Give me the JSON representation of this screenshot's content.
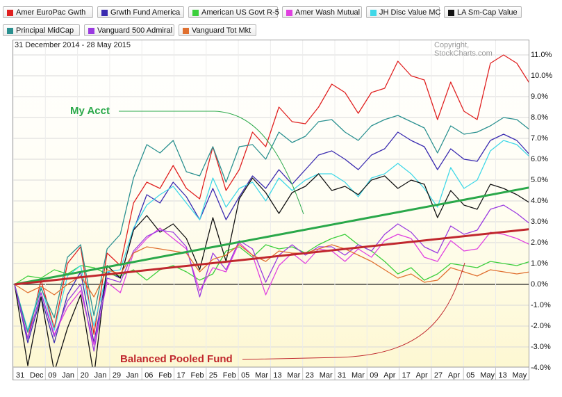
{
  "legend": [
    {
      "label": "Amer EuroPac Gwth",
      "color": "#e02020"
    },
    {
      "label": "Grwth Fund America",
      "color": "#3a2bb0"
    },
    {
      "label": "American US Govt R-5",
      "color": "#3ccf3c"
    },
    {
      "label": "Amer Wash Mutual",
      "color": "#e040e0"
    },
    {
      "label": "JH Disc Value MC",
      "color": "#40d8e8"
    },
    {
      "label": "LA Sm-Cap Value",
      "color": "#111111"
    },
    {
      "label": "Principal MidCap",
      "color": "#2a9090"
    },
    {
      "label": "Vanguard 500 Admiral",
      "color": "#9a3ae0"
    },
    {
      "label": "Vanguard Tot Mkt",
      "color": "#e07030"
    }
  ],
  "header": {
    "date_range": "31 December 2014 - 28 May 2015",
    "copyright": "Copyright, StockCharts.com"
  },
  "annotations": {
    "my_acct": {
      "label": "My Acct",
      "color": "#2aa84a"
    },
    "balanced": {
      "label": "Balanced Pooled Fund",
      "color": "#c0272d"
    }
  },
  "chart_data": {
    "type": "line",
    "ylim": [
      -4.8,
      11.3
    ],
    "y_ticks": [
      "11.0%",
      "10.0%",
      "9.0%",
      "8.0%",
      "7.0%",
      "6.0%",
      "5.0%",
      "4.0%",
      "3.0%",
      "2.0%",
      "1.0%",
      "0.0%",
      "-1.0%",
      "-2.0%",
      "-3.0%",
      "-4.0%"
    ],
    "x_ticks": [
      "31",
      "Dec",
      "09",
      "Jan",
      "20",
      "Jan",
      "29",
      "Jan",
      "06",
      "Feb",
      "17",
      "Feb",
      "25",
      "Feb",
      "05",
      "Mar",
      "13",
      "Mar",
      "23",
      "Mar",
      "31",
      "Mar",
      "09",
      "Apr",
      "17",
      "Apr",
      "27",
      "Apr",
      "05",
      "May",
      "13",
      "May"
    ],
    "series": [
      {
        "name": "Amer EuroPac Gwth",
        "color": "#e02020",
        "values": [
          0,
          -2.6,
          0.2,
          -2.1,
          1,
          1.8,
          -2.4,
          1.5,
          0.9,
          3.9,
          4.9,
          4.6,
          5.7,
          4.6,
          4.1,
          6.6,
          4.5,
          5.5,
          7.3,
          6.6,
          8.5,
          7.8,
          7.7,
          8.5,
          9.6,
          9.2,
          8.2,
          9.2,
          9.4,
          10.7,
          10,
          9.8,
          7.9,
          9.7,
          8.3,
          7.9,
          10.6,
          11,
          10.6,
          9.6
        ]
      },
      {
        "name": "Grwth Fund America",
        "color": "#3a2bb0",
        "values": [
          0,
          -2.8,
          -0.6,
          -2.8,
          -0.5,
          0.6,
          -2.8,
          0.6,
          0.3,
          2.6,
          4.3,
          3.9,
          4.9,
          4.2,
          3.1,
          4.6,
          3.1,
          4.2,
          5.2,
          4.6,
          5.5,
          4.8,
          5.5,
          6.2,
          6.4,
          6,
          5.5,
          6.2,
          6.5,
          7.3,
          6.9,
          6.6,
          5.5,
          6.5,
          6,
          5.9,
          6.9,
          7.2,
          6.9,
          6.2
        ]
      },
      {
        "name": "American US Govt R-5",
        "color": "#3ccf3c",
        "values": [
          0,
          0.4,
          0.3,
          0.7,
          0.5,
          0.9,
          0.8,
          0.5,
          0.4,
          0.7,
          0.2,
          0.7,
          0.9,
          0.6,
          0.2,
          0.5,
          1.6,
          1.8,
          1.3,
          1.9,
          1.7,
          1.8,
          1.5,
          1.9,
          2.2,
          2.4,
          1.9,
          1.6,
          1.1,
          0.5,
          0.8,
          0.2,
          0.5,
          1,
          0.9,
          0.8,
          1.1,
          1,
          0.9,
          1.1
        ]
      },
      {
        "name": "Amer Wash Mutual",
        "color": "#e040e0",
        "values": [
          0,
          -2.6,
          -0.4,
          -2.4,
          -1.1,
          -0.3,
          -2.9,
          0.1,
          -0.4,
          1.5,
          2.2,
          2.7,
          2.2,
          1.7,
          -0.3,
          0.8,
          0.6,
          2,
          1.4,
          -0.5,
          0.9,
          1.5,
          1,
          1.7,
          1.6,
          1.1,
          1.7,
          1.3,
          2.1,
          2.4,
          2.2,
          1.3,
          1.1,
          2.1,
          1.6,
          1.7,
          2.5,
          2.4,
          2.2,
          1.9
        ]
      },
      {
        "name": "JH Disc Value MC",
        "color": "#40d8e8",
        "values": [
          0,
          -2.2,
          -0.1,
          -2.2,
          0.4,
          0.9,
          -2,
          0.6,
          0.7,
          2.7,
          3.8,
          4.3,
          4.7,
          3.9,
          3.1,
          5.1,
          3.7,
          4.6,
          4.9,
          4,
          5.1,
          4.5,
          5,
          5.3,
          5.3,
          4.9,
          4.2,
          5.1,
          5.3,
          5.8,
          5.3,
          4.6,
          3.7,
          5.6,
          4.6,
          5,
          6.4,
          6.9,
          6.7,
          6.1
        ]
      },
      {
        "name": "LA Sm-Cap Value",
        "color": "#111111",
        "values": [
          0,
          -3.9,
          -0.6,
          -4.2,
          -2.1,
          -0.5,
          -4.4,
          0.9,
          0.3,
          2.6,
          3.3,
          2.5,
          2.9,
          2.2,
          0.7,
          3.2,
          1.1,
          4.1,
          5.1,
          4.4,
          3.4,
          4.4,
          4.7,
          5.3,
          4.5,
          4.7,
          4.3,
          5,
          5.2,
          4.6,
          5,
          4.8,
          3.2,
          4.5,
          3.8,
          3.6,
          4.8,
          4.6,
          4.3,
          3.9
        ]
      },
      {
        "name": "Principal MidCap",
        "color": "#2a9090",
        "values": [
          0,
          -2.3,
          -0.2,
          -1.6,
          1.3,
          1.9,
          -1.5,
          1.7,
          2.4,
          5.1,
          6.7,
          6.3,
          6.9,
          5.4,
          5.2,
          6.6,
          4.9,
          6.6,
          6.7,
          6,
          7.3,
          6.8,
          7.1,
          7.8,
          7.9,
          7.3,
          6.9,
          7.6,
          7.9,
          8.1,
          7.8,
          7.5,
          6.3,
          7.6,
          7.2,
          7.3,
          7.6,
          8,
          7.9,
          7.4
        ]
      },
      {
        "name": "Vanguard 500 Admiral",
        "color": "#9a3ae0",
        "values": [
          0,
          -2.6,
          -0.4,
          -2.5,
          -0.8,
          0,
          -3.2,
          0.3,
          0.1,
          1.6,
          2.3,
          2.6,
          2.5,
          1.8,
          -0.6,
          1.5,
          0.7,
          2.1,
          1.7,
          0.1,
          1.4,
          1.9,
          1.4,
          1.8,
          1.8,
          1.4,
          1.9,
          1.6,
          2.4,
          2.9,
          2.5,
          1.8,
          1.5,
          2.8,
          2.4,
          2.6,
          3.6,
          3.8,
          3.4,
          2.9
        ]
      },
      {
        "name": "Vanguard Tot Mkt",
        "color": "#e07030",
        "values": [
          0,
          -0.4,
          -0.1,
          -0.5,
          0,
          0.4,
          -0.6,
          0.7,
          0.5,
          1.5,
          1.8,
          1.7,
          1.6,
          1.5,
          0.6,
          1.2,
          1.4,
          1.9,
          1.4,
          1.1,
          1.6,
          1.5,
          1.5,
          1.7,
          1.9,
          1.7,
          1.4,
          1.1,
          0.7,
          0.3,
          0.5,
          0.1,
          0.2,
          0.8,
          0.6,
          0.4,
          0.7,
          0.6,
          0.5,
          0.6
        ]
      },
      {
        "name": "My Acct",
        "color": "#2aa84a",
        "values": [
          0,
          4.65
        ]
      },
      {
        "name": "Balanced Pooled Fund",
        "color": "#c0272d",
        "values": [
          0,
          2.65
        ]
      }
    ]
  }
}
